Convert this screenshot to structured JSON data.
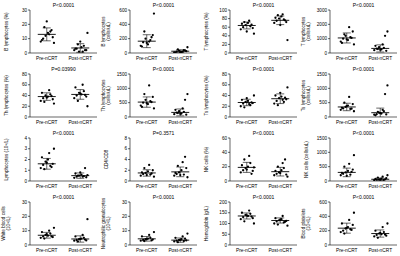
{
  "chart_data": [
    {
      "type": "scatter",
      "annotation": "P<0.0001",
      "y_label": "B lymphocytes (%)",
      "categories": [
        "Pre-nCRT",
        "Post-nCRT"
      ],
      "color": "#000000",
      "ylim": [
        0,
        30
      ],
      "yticks": [
        0,
        10,
        20,
        30
      ],
      "values": [
        [
          8,
          10,
          12,
          14,
          15,
          11,
          9,
          18,
          22,
          13,
          16,
          7
        ],
        [
          2,
          3,
          1,
          4,
          5,
          2,
          3,
          6,
          8,
          1,
          2,
          14
        ]
      ],
      "mean": [
        13,
        3.5
      ],
      "sd": [
        4.5,
        3
      ]
    },
    {
      "type": "scatter",
      "annotation": "P<0.0001",
      "y_label": "B lymphocytes (cells/uL)",
      "categories": [
        "Pre-nCRT",
        "Post-nCRT"
      ],
      "color": "#000000",
      "ylim": [
        0,
        600
      ],
      "yticks": [
        0,
        200,
        400,
        600
      ],
      "values": [
        [
          100,
          150,
          200,
          120,
          180,
          250,
          90,
          300,
          140,
          160,
          220,
          550
        ],
        [
          10,
          20,
          30,
          15,
          40,
          25,
          5,
          50,
          12,
          20,
          35,
          80
        ]
      ],
      "mean": [
        165,
        25
      ],
      "sd": [
        90,
        20
      ]
    },
    {
      "type": "scatter",
      "annotation": "P<0.0001",
      "y_label": "T lymphocytes (%)",
      "categories": [
        "Pre-nCRT",
        "Post-nCRT"
      ],
      "color": "#000000",
      "ylim": [
        0,
        100
      ],
      "yticks": [
        0,
        20,
        40,
        60,
        80,
        100
      ],
      "values": [
        [
          55,
          60,
          65,
          70,
          62,
          58,
          68,
          72,
          50,
          75,
          66,
          45
        ],
        [
          70,
          75,
          80,
          85,
          78,
          72,
          82,
          88,
          65,
          90,
          76,
          30
        ]
      ],
      "mean": [
        64,
        76
      ],
      "sd": [
        8,
        10
      ]
    },
    {
      "type": "scatter",
      "annotation": "P<0.0001",
      "y_label": "T lymphocytes (cells/uL)",
      "categories": [
        "Pre-nCRT",
        "Post-nCRT"
      ],
      "color": "#000000",
      "ylim": [
        0,
        3000
      ],
      "yticks": [
        0,
        1000,
        2000,
        3000
      ],
      "values": [
        [
          800,
          1000,
          1200,
          900,
          1100,
          1500,
          700,
          1300,
          950,
          1800,
          1050,
          600
        ],
        [
          200,
          300,
          400,
          250,
          350,
          150,
          500,
          280,
          220,
          600,
          1200,
          1500
        ]
      ],
      "mean": [
        1050,
        320
      ],
      "sd": [
        350,
        250
      ]
    },
    {
      "type": "scatter",
      "annotation": "P=0.03990",
      "y_label": "Th lymphocytes (%)",
      "categories": [
        "Pre-nCRT",
        "Post-nCRT"
      ],
      "color": "#000000",
      "ylim": [
        0,
        80
      ],
      "yticks": [
        0,
        20,
        40,
        60,
        80
      ],
      "values": [
        [
          30,
          35,
          40,
          38,
          42,
          33,
          45,
          28,
          36,
          50,
          39,
          25
        ],
        [
          35,
          40,
          45,
          42,
          48,
          38,
          55,
          30,
          44,
          60,
          41,
          20
        ]
      ],
      "mean": [
        38,
        42
      ],
      "sd": [
        7,
        9
      ]
    },
    {
      "type": "scatter",
      "annotation": "P<0.0001",
      "y_label": "Th lymphocytes (cells/uL)",
      "categories": [
        "Pre-nCRT",
        "Post-nCRT"
      ],
      "color": "#000000",
      "ylim": [
        0,
        1500
      ],
      "yticks": [
        0,
        500,
        1000,
        1500
      ],
      "values": [
        [
          400,
          500,
          600,
          450,
          550,
          700,
          350,
          800,
          480,
          1100,
          520,
          300
        ],
        [
          100,
          150,
          200,
          120,
          180,
          80,
          250,
          140,
          110,
          300,
          600,
          800
        ]
      ],
      "mean": [
        520,
        160
      ],
      "sd": [
        180,
        120
      ]
    },
    {
      "type": "scatter",
      "annotation": "P<0.0001",
      "y_label": "Ts lymphocytes (%)",
      "categories": [
        "Pre-nCRT",
        "Post-nCRT"
      ],
      "color": "#000000",
      "ylim": [
        0,
        80
      ],
      "yticks": [
        0,
        20,
        40,
        60,
        80
      ],
      "values": [
        [
          20,
          25,
          28,
          30,
          22,
          26,
          32,
          18,
          35,
          24,
          27,
          40
        ],
        [
          25,
          30,
          35,
          38,
          28,
          33,
          40,
          22,
          45,
          32,
          36,
          55
        ]
      ],
      "mean": [
        27,
        34
      ],
      "sd": [
        6,
        9
      ]
    },
    {
      "type": "scatter",
      "annotation": "P<0.0001",
      "y_label": "Ts lymphocytes (cells/uL)",
      "categories": [
        "Pre-nCRT",
        "Post-nCRT"
      ],
      "color": "#000000",
      "ylim": [
        0,
        1500
      ],
      "yticks": [
        0,
        500,
        1000,
        1500
      ],
      "values": [
        [
          250,
          300,
          350,
          400,
          280,
          450,
          320,
          500,
          380,
          700,
          290,
          200
        ],
        [
          80,
          100,
          150,
          120,
          200,
          90,
          60,
          180,
          130,
          250,
          800,
          1100
        ]
      ],
      "mean": [
        350,
        150
      ],
      "sd": [
        130,
        160
      ]
    },
    {
      "type": "scatter",
      "annotation": "P<0.0001",
      "y_label": "Lymphocytes (10⁹/L)",
      "categories": [
        "Pre-nCRT",
        "Post-nCRT"
      ],
      "color": "#000000",
      "ylim": [
        0,
        4
      ],
      "yticks": [
        0,
        1,
        2,
        3,
        4
      ],
      "values": [
        [
          1.2,
          1.5,
          1.8,
          2.0,
          1.4,
          1.6,
          2.2,
          1.1,
          1.7,
          2.6,
          1.3,
          3.0
        ],
        [
          0.3,
          0.4,
          0.5,
          0.6,
          0.45,
          0.35,
          0.7,
          0.5,
          0.8,
          0.4,
          1.2,
          0.55
        ]
      ],
      "mean": [
        1.6,
        0.5
      ],
      "sd": [
        0.5,
        0.25
      ]
    },
    {
      "type": "scatter",
      "annotation": "P=0.3571",
      "y_label": "CD4/CD8",
      "categories": [
        "Pre-nCRT",
        "Post-nCRT"
      ],
      "color": "#000000",
      "ylim": [
        0,
        8
      ],
      "yticks": [
        0,
        2,
        4,
        6,
        8
      ],
      "values": [
        [
          1.0,
          1.3,
          1.5,
          1.8,
          1.2,
          2.0,
          1.6,
          2.4,
          1.1,
          3.0,
          1.4,
          0.8
        ],
        [
          1.0,
          1.3,
          1.6,
          2.0,
          1.2,
          2.4,
          1.5,
          2.8,
          1.1,
          3.5,
          4.5,
          0.7
        ]
      ],
      "mean": [
        1.5,
        1.7
      ],
      "sd": [
        0.6,
        0.9
      ]
    },
    {
      "type": "scatter",
      "annotation": "P<0.0001",
      "y_label": "NK cells (%)",
      "categories": [
        "Pre-nCRT",
        "Post-nCRT"
      ],
      "color": "#000000",
      "ylim": [
        0,
        60
      ],
      "yticks": [
        0,
        20,
        40,
        60
      ],
      "values": [
        [
          12,
          15,
          18,
          20,
          25,
          14,
          22,
          30,
          16,
          35,
          10,
          19
        ],
        [
          8,
          10,
          12,
          15,
          18,
          9,
          14,
          20,
          11,
          25,
          30,
          6
        ]
      ],
      "mean": [
        19,
        13
      ],
      "sd": [
        7,
        6
      ]
    },
    {
      "type": "scatter",
      "annotation": "P<0.0001",
      "y_label": "NK cells (cells/uL)",
      "categories": [
        "Pre-nCRT",
        "Post-nCRT"
      ],
      "color": "#000000",
      "ylim": [
        0,
        1500
      ],
      "yticks": [
        0,
        500,
        1000,
        1500
      ],
      "values": [
        [
          200,
          250,
          300,
          350,
          220,
          400,
          280,
          500,
          180,
          600,
          320,
          900
        ],
        [
          30,
          50,
          60,
          80,
          40,
          100,
          70,
          120,
          45,
          150,
          60,
          200
        ]
      ],
      "mean": [
        300,
        60
      ],
      "sd": [
        150,
        45
      ]
    },
    {
      "type": "scatter",
      "annotation": "P<0.0001",
      "y_label": "White blood cells (10⁹/L)",
      "categories": [
        "Pre-nCRT",
        "Post-nCRT"
      ],
      "color": "#000000",
      "ylim": [
        0,
        30
      ],
      "yticks": [
        0,
        10,
        20,
        30
      ],
      "values": [
        [
          5,
          6,
          7,
          6.5,
          8,
          5.5,
          9,
          4.5,
          7.5,
          10,
          6,
          12
        ],
        [
          3,
          3.5,
          4,
          4.5,
          5,
          3.2,
          6,
          2.5,
          4.2,
          7,
          3.8,
          18
        ]
      ],
      "mean": [
        6.8,
        4.2
      ],
      "sd": [
        2,
        2.2
      ]
    },
    {
      "type": "scatter",
      "annotation": "P<0.0001",
      "y_label": "Neutrophilic granulocytes (10⁹/L)",
      "categories": [
        "Pre-nCRT",
        "Post-nCRT"
      ],
      "color": "#000000",
      "ylim": [
        0,
        30
      ],
      "yticks": [
        0,
        10,
        20,
        30
      ],
      "values": [
        [
          3,
          3.5,
          4,
          4.5,
          5,
          3.8,
          6,
          2.8,
          4.2,
          7,
          3.2,
          9
        ],
        [
          2.5,
          3,
          3.5,
          4,
          2.8,
          3.2,
          5,
          2,
          3.6,
          6,
          4.4,
          8
        ]
      ],
      "mean": [
        4.3,
        3.4
      ],
      "sd": [
        1.6,
        1.5
      ]
    },
    {
      "type": "scatter",
      "annotation": "P<0.0001",
      "y_label": "Hemoglobin (g/L)",
      "categories": [
        "Pre-nCRT",
        "Post-nCRT"
      ],
      "color": "#000000",
      "ylim": [
        0,
        200
      ],
      "yticks": [
        0,
        50,
        100,
        150,
        200
      ],
      "values": [
        [
          120,
          130,
          140,
          135,
          145,
          125,
          150,
          110,
          138,
          160,
          132,
          100
        ],
        [
          100,
          110,
          115,
          120,
          105,
          112,
          125,
          95,
          118,
          135,
          108,
          90
        ]
      ],
      "mean": [
        135,
        114
      ],
      "sd": [
        14,
        12
      ]
    },
    {
      "type": "scatter",
      "annotation": "P<0.0001",
      "y_label": "Blood platelets (10⁹/L)",
      "categories": [
        "Pre-nCRT",
        "Post-nCRT"
      ],
      "color": "#000000",
      "ylim": [
        0,
        600
      ],
      "yticks": [
        0,
        200,
        400,
        600
      ],
      "values": [
        [
          180,
          200,
          230,
          250,
          220,
          280,
          300,
          160,
          240,
          350,
          210,
          450
        ],
        [
          120,
          140,
          160,
          150,
          180,
          130,
          200,
          100,
          170,
          250,
          145,
          300
        ]
      ],
      "mean": [
        235,
        160
      ],
      "sd": [
        70,
        50
      ]
    }
  ]
}
